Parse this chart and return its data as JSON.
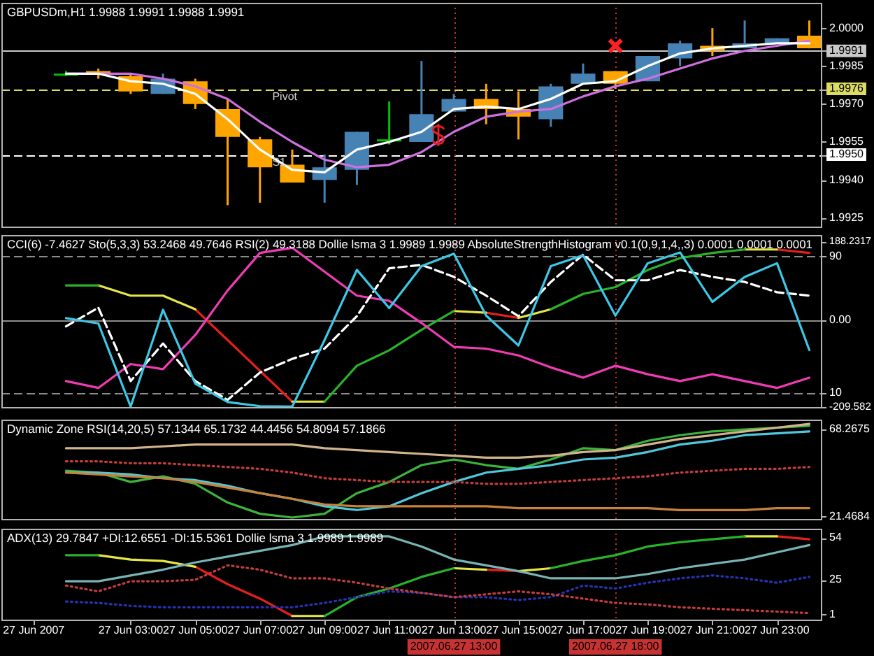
{
  "chart_data": [
    {
      "type": "candlestick",
      "title": "GBPUSDm,H1 1.9988 1.9991 1.9988 1.9991",
      "x": [
        "2007-06-27T01:00",
        "2007-06-27T02:00",
        "2007-06-27T03:00",
        "2007-06-27T04:00",
        "2007-06-27T05:00",
        "2007-06-27T06:00",
        "2007-06-27T07:00",
        "2007-06-27T08:00",
        "2007-06-27T09:00",
        "2007-06-27T10:00",
        "2007-06-27T11:00",
        "2007-06-27T12:00",
        "2007-06-27T13:00",
        "2007-06-27T14:00",
        "2007-06-27T15:00",
        "2007-06-27T16:00",
        "2007-06-27T17:00",
        "2007-06-27T18:00",
        "2007-06-27T19:00",
        "2007-06-27T20:00",
        "2007-06-27T21:00",
        "2007-06-27T22:00",
        "2007-06-27T23:00",
        "2007-06-28T00:00"
      ],
      "xlim": [
        "2007-06-26T23:00",
        "2007-06-28T00:24"
      ],
      "ylim": [
        1.9921,
        2.001
      ],
      "yticks": [
        {
          "value": 2,
          "label": "2.0000"
        },
        1.9991,
        1.9985,
        1.9976,
        {
          "value": 1.997,
          "label": "1.9970"
        },
        1.9955,
        {
          "value": 1.995,
          "label": "1.9950"
        },
        {
          "value": 1.994,
          "label": "1.9940"
        },
        1.9925
      ],
      "tick_labels": "y",
      "series": [
        {
          "type": "candlestick",
          "ohlc": [
            [
              1.9982,
              1.9983,
              1.9981,
              1.9982
            ],
            [
              1.9983,
              1.9984,
              1.998,
              1.9982
            ],
            [
              1.9981,
              1.9982,
              1.9974,
              1.9975
            ],
            [
              1.9974,
              1.9982,
              1.9974,
              1.998
            ],
            [
              1.9979,
              1.998,
              1.9968,
              1.997
            ],
            [
              1.9968,
              1.9972,
              1.993,
              1.9957
            ],
            [
              1.9956,
              1.9957,
              1.9931,
              1.9945
            ],
            [
              1.9946,
              1.9952,
              1.9939,
              1.9939
            ],
            [
              1.994,
              1.995,
              1.9931,
              1.9945
            ],
            [
              1.9944,
              1.9959,
              1.9938,
              1.9959
            ],
            [
              1.9956,
              1.9971,
              1.9954,
              1.9956
            ],
            [
              1.9955,
              1.9987,
              1.9955,
              1.9966
            ],
            [
              1.9967,
              1.9974,
              1.9967,
              1.9972
            ],
            [
              1.9972,
              1.9978,
              1.9962,
              1.9968
            ],
            [
              1.9968,
              1.9975,
              1.9956,
              1.9965
            ],
            [
              1.9964,
              1.9978,
              1.9961,
              1.9977
            ],
            [
              1.9978,
              1.9986,
              1.9978,
              1.9982
            ],
            [
              1.9983,
              1.9983,
              1.9976,
              1.9978
            ],
            [
              1.9979,
              1.9989,
              1.9979,
              1.9989
            ],
            [
              1.9988,
              1.9995,
              1.9985,
              1.9994
            ],
            [
              1.9993,
              2,
              1.9989,
              1.9991
            ],
            [
              1.9992,
              2.0003,
              1.9992,
              1.9994
            ],
            [
              1.9994,
              1.9996,
              1.9994,
              1.9996
            ],
            [
              1.9997,
              2.0003,
              1.9992,
              1.9992
            ]
          ],
          "colors": [
            "#00c000",
            "#ffa500",
            "#ffa500",
            "#4682b4",
            "#ffa500",
            "#ffa500",
            "#ffa500",
            "#ffa500",
            "#4682b4",
            "#4682b4",
            "#00c000",
            "#4682b4",
            "#4682b4",
            "#ffa500",
            "#ffa500",
            "#4682b4",
            "#4682b4",
            "#ffa500",
            "#4682b4",
            "#4682b4",
            "#ffa500",
            "#4682b4",
            "#4682b4",
            "#ffa500"
          ]
        },
        {
          "type": "line",
          "color": "#ffffff",
          "values": [
            1.9982,
            1.9982,
            1.9979,
            1.9978,
            1.9974,
            1.9964,
            1.9952,
            1.9944,
            1.9943,
            1.9952,
            1.9955,
            1.9959,
            1.9968,
            1.9969,
            1.9968,
            1.9972,
            1.9978,
            1.9979,
            1.9985,
            1.999,
            1.9992,
            1.9993,
            1.9994,
            1.9994
          ]
        },
        {
          "type": "line",
          "color": "#d070e0",
          "values": [
            1.9982,
            1.9982,
            1.9982,
            1.998,
            1.9977,
            1.9972,
            1.9963,
            1.9955,
            1.9948,
            1.9945,
            1.9946,
            1.9951,
            1.9959,
            1.9965,
            1.9967,
            1.9968,
            1.9973,
            1.9977,
            1.998,
            1.9984,
            1.9988,
            1.9991,
            1.9993,
            1.9995
          ]
        },
        {
          "type": "scatter",
          "x": [
            "2007-06-27T18:00"
          ],
          "values": [
            1.9993
          ],
          "color": "#ff2020",
          "marker": "cross"
        }
      ],
      "ref_lines": [
        {
          "axis": "y",
          "value": 1.9991,
          "color": "#c8c8c8",
          "line_style": "solid"
        },
        {
          "axis": "y",
          "value": 1.9976,
          "label": "Pivot",
          "color": "#dcdc64",
          "line_style": "dashed"
        },
        {
          "axis": "y",
          "value": 1.995,
          "label": "S1",
          "color": "#ffffff",
          "line_style": "dashed"
        },
        {
          "axis": "x",
          "value": "2007-06-27T13:00",
          "color": "#c83232",
          "line_style": "dotted"
        },
        {
          "axis": "x",
          "value": "2007-06-27T18:00",
          "color": "#c83232",
          "line_style": "dotted"
        }
      ]
    },
    {
      "type": "line",
      "title": "CCI(6) -7.4627 Sto(5,3,3) 53.2468 49.7646 RSI(2) 49.3188 Dollie lsma 3 1.9989 1.9989 AbsoluteStrengthHistogram v0.1(0,9,1,4,,3) 0.0001 0.0001 0.0001",
      "x": [
        "2007-06-27T01:00",
        "2007-06-27T02:00",
        "2007-06-27T03:00",
        "2007-06-27T04:00",
        "2007-06-27T05:00",
        "2007-06-27T06:00",
        "2007-06-27T07:00",
        "2007-06-27T08:00",
        "2007-06-27T09:00",
        "2007-06-27T10:00",
        "2007-06-27T11:00",
        "2007-06-27T12:00",
        "2007-06-27T13:00",
        "2007-06-27T14:00",
        "2007-06-27T15:00",
        "2007-06-27T16:00",
        "2007-06-27T17:00",
        "2007-06-27T18:00",
        "2007-06-27T19:00",
        "2007-06-27T20:00",
        "2007-06-27T21:00",
        "2007-06-27T22:00",
        "2007-06-27T23:00",
        "2007-06-28T00:00"
      ],
      "xlim": [
        "2007-06-26T23:00",
        "2007-06-28T00:24"
      ],
      "ylim": [
        -213.5,
        204
      ],
      "yticks": [
        188.2317,
        {
          "value": 0,
          "label": "0.00"
        },
        -209.582
      ],
      "y2lim": [
        1,
        102.5
      ],
      "y2ticks": [
        90,
        10
      ],
      "tick_labels": "y",
      "series": [
        {
          "color": "#3cc8e6",
          "values": [
            4,
            -9,
            -209,
            24,
            -154,
            -198,
            -208,
            -209,
            -49,
            120,
            28,
            129,
            159,
            10,
            -62,
            129,
            155,
            10,
            136,
            162,
            43,
            103,
            136,
            -73
          ]
        },
        {
          "color": "#ffffff",
          "axis": "y2",
          "line_style": "dashed",
          "values": [
            49,
            60,
            17,
            39,
            17,
            6,
            22,
            30,
            36,
            55,
            83,
            85,
            78,
            67,
            55,
            75,
            91,
            76,
            76,
            82,
            78,
            75,
            69,
            67
          ]
        },
        {
          "color": "#f03cb4",
          "axis": "y2",
          "values": [
            17,
            13,
            27,
            24,
            44,
            70,
            92,
            95,
            81,
            67,
            64,
            51,
            37,
            36,
            32,
            25,
            19,
            26,
            21,
            17,
            21,
            17,
            13,
            19
          ]
        },
        {
          "color": "#28b428",
          "axis": "y2",
          "values": [
            73,
            73,
            null,
            null,
            null,
            null,
            null,
            null,
            5,
            26,
            35,
            47,
            58,
            null,
            null,
            59,
            68,
            72,
            82,
            89,
            92,
            94,
            null,
            null
          ]
        },
        {
          "color": "#e6e646",
          "axis": "y2",
          "values": [
            null,
            73,
            67,
            67,
            59,
            null,
            null,
            null,
            null,
            null,
            null,
            null,
            58,
            57,
            null,
            null,
            null,
            null,
            null,
            null,
            null,
            94,
            94,
            null
          ]
        },
        {
          "color": "#e6e646",
          "axis": "y2",
          "values": [
            null,
            null,
            null,
            null,
            null,
            null,
            null,
            5,
            5,
            null,
            null,
            null,
            null,
            null,
            54,
            59,
            null,
            null,
            null,
            null,
            null,
            null,
            null,
            null
          ]
        },
        {
          "color": "#e61e1e",
          "axis": "y2",
          "values": [
            null,
            null,
            null,
            null,
            59,
            41,
            23,
            5,
            null,
            null,
            null,
            null,
            null,
            57,
            54,
            null,
            null,
            null,
            null,
            null,
            null,
            null,
            94,
            92
          ]
        }
      ],
      "ref_lines": [
        {
          "axis": "y2",
          "value": 90,
          "color": "#8c8c8c",
          "line_style": "dashed"
        },
        {
          "axis": "y2",
          "value": 10,
          "color": "#8c8c8c",
          "line_style": "dashed"
        },
        {
          "axis": "y",
          "value": 0,
          "color": "#8c8c8c",
          "line_style": "solid"
        },
        {
          "axis": "x",
          "value": "2007-06-27T13:00",
          "color": "#c83232",
          "line_style": "dotted"
        },
        {
          "axis": "x",
          "value": "2007-06-27T18:00",
          "color": "#c83232",
          "line_style": "dotted"
        }
      ]
    },
    {
      "type": "line",
      "title": "Dynamic Zone RSI(14,20,5) 57.1344 65.1732 44.4456 54.8094 57.1866",
      "x": [
        "2007-06-27T01:00",
        "2007-06-27T02:00",
        "2007-06-27T03:00",
        "2007-06-27T04:00",
        "2007-06-27T05:00",
        "2007-06-27T06:00",
        "2007-06-27T07:00",
        "2007-06-27T08:00",
        "2007-06-27T09:00",
        "2007-06-27T10:00",
        "2007-06-27T11:00",
        "2007-06-27T12:00",
        "2007-06-27T13:00",
        "2007-06-27T14:00",
        "2007-06-27T15:00",
        "2007-06-27T16:00",
        "2007-06-27T17:00",
        "2007-06-27T18:00",
        "2007-06-27T19:00",
        "2007-06-27T20:00",
        "2007-06-27T21:00",
        "2007-06-27T22:00",
        "2007-06-27T23:00",
        "2007-06-28T00:00"
      ],
      "xlim": [
        "2007-06-26T23:00",
        "2007-06-28T00:24"
      ],
      "ylim": [
        19.5,
        73.3
      ],
      "yticks": [
        68.2675,
        21.4684
      ],
      "tick_labels": "y",
      "series": [
        {
          "color": "#d2b48c",
          "values": [
            58,
            58,
            58,
            59,
            60,
            60,
            60,
            60,
            58,
            57,
            56,
            55,
            54,
            53,
            53,
            54,
            56,
            57,
            60,
            63,
            65,
            67,
            69,
            71
          ]
        },
        {
          "color": "#c83c3c",
          "line_style": "dotted",
          "values": [
            51,
            51,
            50,
            50,
            49,
            48,
            47,
            45,
            42,
            41,
            40,
            40,
            40,
            39,
            39,
            40,
            41,
            42,
            43,
            45,
            46,
            47,
            47,
            48
          ]
        },
        {
          "color": "#c8823c",
          "values": [
            45,
            44,
            43,
            42,
            40,
            37,
            34,
            31,
            28,
            27,
            27,
            27,
            27,
            27,
            26,
            26,
            26,
            26,
            26,
            25,
            25,
            25,
            26,
            26
          ]
        },
        {
          "color": "#50c8dc",
          "values": [
            45,
            45,
            44,
            42,
            41,
            38,
            34,
            31,
            27,
            25,
            27,
            34,
            40,
            45,
            47,
            49,
            52,
            53,
            56,
            60,
            62,
            65,
            66,
            67
          ]
        },
        {
          "color": "#3cb43c",
          "values": [
            46,
            45,
            40,
            43,
            39,
            29,
            23,
            21,
            23,
            34,
            40,
            49,
            52,
            49,
            47,
            52,
            58,
            57,
            62,
            65,
            67,
            68,
            69,
            70
          ]
        }
      ],
      "ref_lines": [
        {
          "axis": "x",
          "value": "2007-06-27T13:00",
          "color": "#c83232",
          "line_style": "dotted"
        },
        {
          "axis": "x",
          "value": "2007-06-27T18:00",
          "color": "#c83232",
          "line_style": "dotted"
        }
      ]
    },
    {
      "type": "line",
      "title": "ADX(13) 29.7847 +DI:12.6551 -DI:15.5361 Dollie lsma 3 1.9989 1.9989",
      "x": [
        "2007-06-27T01:00",
        "2007-06-27T02:00",
        "2007-06-27T03:00",
        "2007-06-27T04:00",
        "2007-06-27T05:00",
        "2007-06-27T06:00",
        "2007-06-27T07:00",
        "2007-06-27T08:00",
        "2007-06-27T09:00",
        "2007-06-27T10:00",
        "2007-06-27T11:00",
        "2007-06-27T12:00",
        "2007-06-27T13:00",
        "2007-06-27T14:00",
        "2007-06-27T15:00",
        "2007-06-27T16:00",
        "2007-06-27T17:00",
        "2007-06-27T18:00",
        "2007-06-27T19:00",
        "2007-06-27T20:00",
        "2007-06-27T21:00",
        "2007-06-27T22:00",
        "2007-06-27T23:00",
        "2007-06-28T00:00"
      ],
      "xlim": [
        "2007-06-26T23:00",
        "2007-06-28T00:24"
      ],
      "xticks": [
        {
          "value": "2007-06-27T00:00",
          "label": "27 Jun 2007"
        },
        {
          "value": "2007-06-27T03:00",
          "label": "27 Jun 03:00"
        },
        {
          "value": "2007-06-27T05:00",
          "label": "27 Jun 05:00"
        },
        {
          "value": "2007-06-27T07:00",
          "label": "27 Jun 07:00"
        },
        {
          "value": "2007-06-27T09:00",
          "label": "27 Jun 09:00"
        },
        {
          "value": "2007-06-27T11:00",
          "label": "27 Jun 11:00"
        },
        {
          "value": "2007-06-27T13:00",
          "label": "27 Jun 13:00"
        },
        {
          "value": "2007-06-27T15:00",
          "label": "27 Jun 15:00"
        },
        {
          "value": "2007-06-27T17:00",
          "label": "27 Jun 17:00"
        },
        {
          "value": "2007-06-27T19:00",
          "label": "27 Jun 19:00"
        },
        {
          "value": "2007-06-27T21:00",
          "label": "27 Jun 21:00"
        },
        {
          "value": "2007-06-27T23:00",
          "label": "27 Jun 23:00"
        }
      ],
      "ylim": [
        -3.5,
        60.3
      ],
      "yticks": [
        54,
        25,
        1
      ],
      "series": [
        {
          "color": "#78b4b4",
          "values": [
            24,
            24,
            28,
            32,
            37,
            41,
            45,
            49,
            55,
            55,
            55,
            48,
            39,
            35,
            31,
            26,
            26,
            26,
            29,
            33,
            36,
            39,
            44,
            49
          ]
        },
        {
          "color": "#c83c3c",
          "line_style": "dotted",
          "values": [
            21,
            17,
            24,
            24,
            25,
            35,
            32,
            26,
            26,
            23,
            19,
            16,
            13,
            15,
            17,
            15,
            12,
            9,
            8,
            6,
            5,
            4,
            3,
            2
          ]
        },
        {
          "color": "#2832b4",
          "line_style": "dotted",
          "values": [
            10,
            9,
            7,
            6,
            6,
            6,
            6,
            6,
            9,
            13,
            17,
            16,
            13,
            13,
            11,
            13,
            21,
            19,
            23,
            26,
            28,
            26,
            23,
            27
          ]
        },
        {
          "color": "#28b428",
          "values": [
            42,
            42,
            null,
            null,
            null,
            null,
            null,
            null,
            0,
            13,
            19,
            27,
            33,
            null,
            null,
            33,
            38,
            42,
            48,
            51,
            53,
            55,
            null,
            null
          ]
        },
        {
          "color": "#e6e646",
          "values": [
            null,
            42,
            39,
            38,
            34,
            null,
            null,
            null,
            null,
            null,
            null,
            null,
            33,
            32,
            null,
            null,
            null,
            null,
            null,
            null,
            null,
            55,
            55,
            null
          ]
        },
        {
          "color": "#e6e646",
          "values": [
            null,
            null,
            null,
            null,
            null,
            null,
            null,
            0,
            0,
            null,
            null,
            null,
            null,
            null,
            31,
            33,
            null,
            null,
            null,
            null,
            null,
            null,
            null,
            null
          ]
        },
        {
          "color": "#e61e1e",
          "values": [
            null,
            null,
            null,
            null,
            34,
            22,
            12,
            0,
            null,
            null,
            null,
            null,
            null,
            32,
            31,
            null,
            null,
            null,
            null,
            null,
            null,
            null,
            55,
            53
          ]
        }
      ],
      "ref_lines": [
        {
          "axis": "x",
          "value": "2007-06-27T13:00",
          "label": "2007.06.27 13:00",
          "color": "#c83232",
          "line_style": "dotted"
        },
        {
          "axis": "x",
          "value": "2007-06-27T18:00",
          "label": "2007.06.27 18:00",
          "color": "#c83232",
          "line_style": "dotted"
        }
      ]
    }
  ]
}
